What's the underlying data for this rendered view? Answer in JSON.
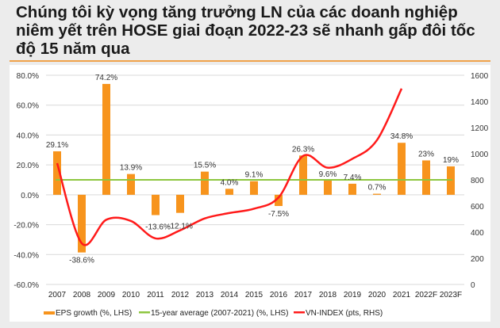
{
  "title": "Chúng tôi kỳ vọng tăng trưởng LN của các doanh nghiệp niêm yết trên HOSE giai đoạn 2022-23 sẽ nhanh gấp đôi tốc độ 15 năm qua",
  "chart_data": {
    "type": "bar+line",
    "categories": [
      "2007",
      "2008",
      "2009",
      "2010",
      "2011",
      "2012",
      "2013",
      "2014",
      "2015",
      "2016",
      "2017",
      "2018",
      "2019",
      "2020",
      "2021",
      "2022F",
      "2023F"
    ],
    "left_axis": {
      "min": -60,
      "max": 80,
      "step": 20,
      "ticks": [
        "80.0%",
        "60.0%",
        "40.0%",
        "20.0%",
        "0.0%",
        "-20.0%",
        "-40.0%",
        "-60.0%"
      ]
    },
    "right_axis": {
      "min": 0,
      "max": 1600,
      "step": 200,
      "ticks": [
        "1600",
        "1400",
        "1200",
        "1000",
        "800",
        "600",
        "400",
        "200",
        "0"
      ]
    },
    "grid": true,
    "legend_position": "bottom",
    "series": [
      {
        "name": "EPS growth (%, LHS)",
        "type": "bar",
        "axis": "left",
        "color": "#f7941d",
        "values": [
          29.1,
          -38.6,
          74.2,
          13.9,
          -13.6,
          -12.1,
          15.5,
          4.0,
          9.1,
          -7.5,
          26.3,
          9.6,
          7.4,
          0.7,
          34.8,
          23,
          19
        ],
        "labels": [
          "29.1%",
          "-38.6%",
          "74.2%",
          "13.9%",
          "-13.6%",
          "-12.1%",
          "15.5%",
          "4.0%",
          "9.1%",
          "-7.5%",
          "26.3%",
          "9.6%",
          "7.4%",
          "0.7%",
          "34.8%",
          "23%",
          "19%"
        ]
      },
      {
        "name": "15-year average (2007-2021) (%, LHS)",
        "type": "line",
        "axis": "left",
        "color": "#8dc63f",
        "values": [
          10,
          10,
          10,
          10,
          10,
          10,
          10,
          10,
          10,
          10,
          10,
          10,
          10,
          10,
          10,
          10,
          10
        ]
      },
      {
        "name": "VN-INDEX (pts, RHS)",
        "type": "line",
        "axis": "right",
        "color": "#ff1a1a",
        "values": [
          927,
          315,
          495,
          485,
          352,
          414,
          505,
          546,
          579,
          665,
          984,
          893,
          961,
          1104,
          1498,
          null,
          null
        ]
      }
    ]
  }
}
